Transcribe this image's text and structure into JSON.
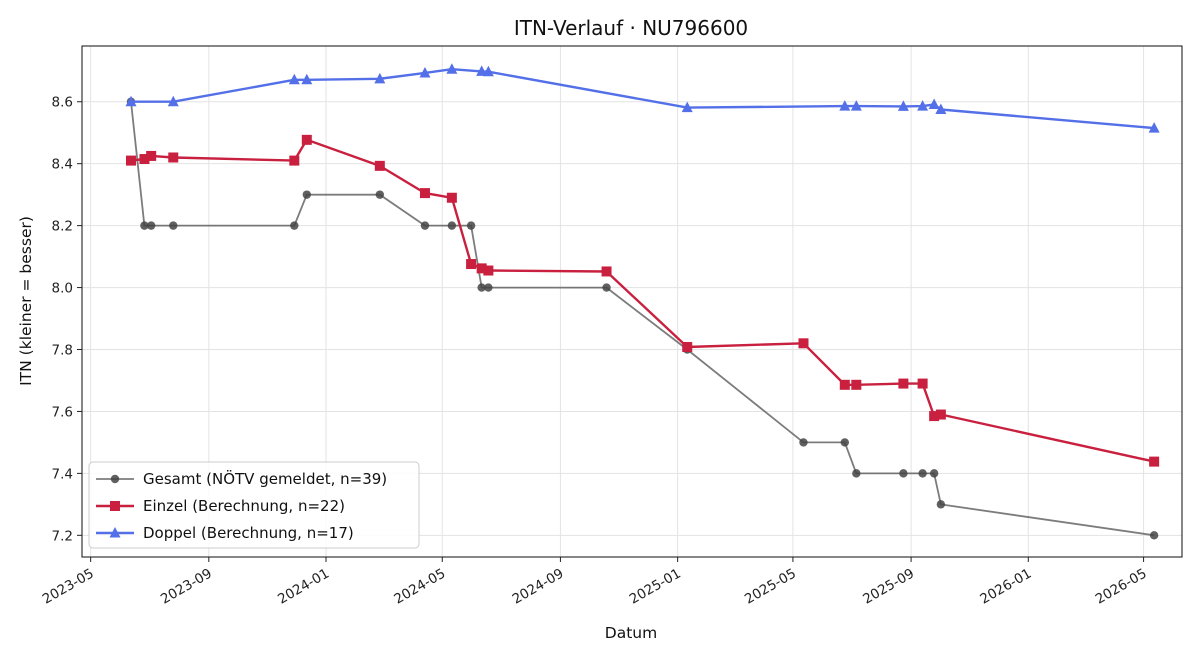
{
  "chart_data": {
    "type": "line",
    "title": "ITN-Verlauf · NU796600",
    "xlabel": "Datum",
    "ylabel": "ITN  (kleiner = besser)",
    "ylim": [
      7.13,
      8.78
    ],
    "xlim": [
      "2023-04-22",
      "2026-06-10"
    ],
    "grid": true,
    "legend_position": "lower-left",
    "x_tick_labels": [
      "2023-05",
      "2023-09",
      "2024-01",
      "2024-05",
      "2024-09",
      "2025-01",
      "2025-05",
      "2025-09",
      "2026-01",
      "2026-05"
    ],
    "y_tick_labels": [
      "7.2",
      "7.4",
      "7.6",
      "7.8",
      "8.0",
      "8.2",
      "8.4",
      "8.6"
    ],
    "series": [
      {
        "name": "Gesamt (NÖTV gemeldet, n=39)",
        "color": "#444444",
        "marker": "circle",
        "points": [
          [
            "2023-06-12",
            8.6
          ],
          [
            "2023-06-26",
            8.2
          ],
          [
            "2023-07-03",
            8.2
          ],
          [
            "2023-07-26",
            8.2
          ],
          [
            "2023-11-29",
            8.2
          ],
          [
            "2023-12-12",
            8.3
          ],
          [
            "2024-02-26",
            8.3
          ],
          [
            "2024-04-13",
            8.2
          ],
          [
            "2024-05-11",
            8.2
          ],
          [
            "2024-05-31",
            8.2
          ],
          [
            "2024-06-11",
            8.0
          ],
          [
            "2024-06-18",
            8.0
          ],
          [
            "2024-10-19",
            8.0
          ],
          [
            "2025-01-11",
            7.8
          ],
          [
            "2025-05-12",
            7.5
          ],
          [
            "2025-06-24",
            7.5
          ],
          [
            "2025-07-06",
            7.4
          ],
          [
            "2025-08-24",
            7.4
          ],
          [
            "2025-09-13",
            7.4
          ],
          [
            "2025-09-25",
            7.4
          ],
          [
            "2025-10-02",
            7.3
          ],
          [
            "2026-05-12",
            7.2
          ]
        ]
      },
      {
        "name": "Einzel (Berechnung, n=22)",
        "color": "#c8203e",
        "marker": "square",
        "points": [
          [
            "2023-06-12",
            8.41
          ],
          [
            "2023-06-26",
            8.415
          ],
          [
            "2023-07-03",
            8.425
          ],
          [
            "2023-07-26",
            8.42
          ],
          [
            "2023-11-29",
            8.41
          ],
          [
            "2023-12-12",
            8.477
          ],
          [
            "2024-02-26",
            8.393
          ],
          [
            "2024-04-13",
            8.305
          ],
          [
            "2024-05-11",
            8.29
          ],
          [
            "2024-05-31",
            8.076
          ],
          [
            "2024-06-11",
            8.062
          ],
          [
            "2024-06-18",
            8.055
          ],
          [
            "2024-10-19",
            8.052
          ],
          [
            "2025-01-11",
            7.808
          ],
          [
            "2025-05-12",
            7.82
          ],
          [
            "2025-06-24",
            7.686
          ],
          [
            "2025-07-06",
            7.686
          ],
          [
            "2025-08-24",
            7.69
          ],
          [
            "2025-09-13",
            7.69
          ],
          [
            "2025-09-25",
            7.585
          ],
          [
            "2025-10-02",
            7.59
          ],
          [
            "2026-05-12",
            7.438
          ]
        ]
      },
      {
        "name": "Doppel (Berechnung, n=17)",
        "color": "#5470e8",
        "marker": "triangle",
        "points": [
          [
            "2023-06-12",
            8.6
          ],
          [
            "2023-07-26",
            8.6
          ],
          [
            "2023-11-29",
            8.671
          ],
          [
            "2023-12-12",
            8.671
          ],
          [
            "2024-02-26",
            8.674
          ],
          [
            "2024-04-13",
            8.693
          ],
          [
            "2024-05-11",
            8.705
          ],
          [
            "2024-06-11",
            8.698
          ],
          [
            "2024-06-18",
            8.697
          ],
          [
            "2025-01-11",
            8.581
          ],
          [
            "2025-06-24",
            8.586
          ],
          [
            "2025-07-06",
            8.586
          ],
          [
            "2025-08-24",
            8.585
          ],
          [
            "2025-09-13",
            8.586
          ],
          [
            "2025-09-25",
            8.591
          ],
          [
            "2025-10-02",
            8.575
          ],
          [
            "2026-05-12",
            8.515
          ]
        ]
      }
    ]
  }
}
